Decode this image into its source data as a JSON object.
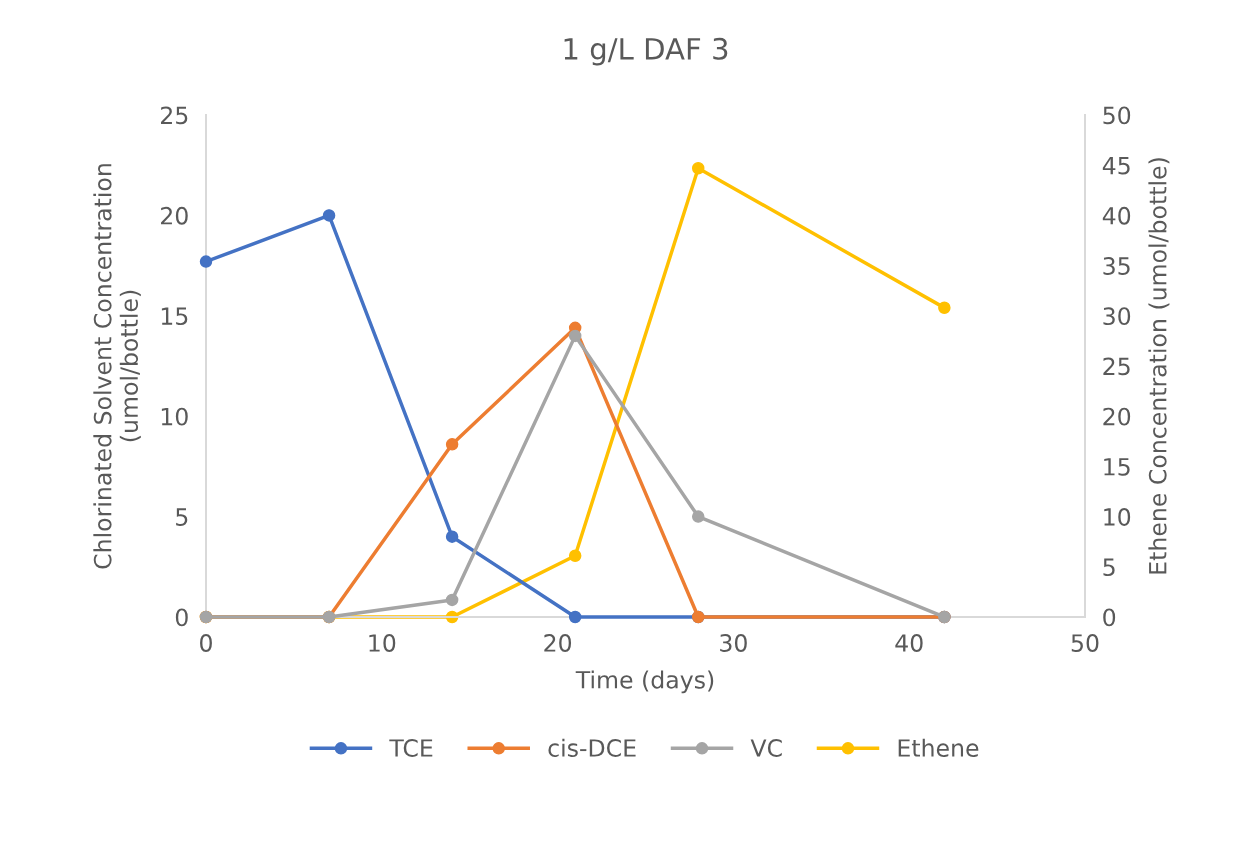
{
  "chart_data": {
    "type": "line",
    "title": "1 g/L DAF 3",
    "xlabel": "Time (days)",
    "ylabel": "Chlorinated Solvent Concentration\n(umol/bottle)",
    "y2label": "Ethene Concentration (umol/bottle)",
    "x": [
      0,
      7,
      14,
      21,
      28,
      42
    ],
    "series": [
      {
        "name": "TCE",
        "color": "#4472c4",
        "values": [
          17.7,
          20.0,
          4.0,
          0,
          0,
          0
        ]
      },
      {
        "name": "cis-DCE",
        "color": "#ed7d31",
        "values": [
          0,
          0,
          8.6,
          14.4,
          0,
          0
        ]
      },
      {
        "name": "VC",
        "color": "#a5a5a5",
        "values": [
          0,
          0,
          0.85,
          14.0,
          5.0,
          0
        ]
      },
      {
        "name": "Ethene",
        "color": "#ffc000",
        "axis": "y2",
        "values": [
          0,
          0,
          0,
          6.1,
          44.7,
          30.8
        ]
      }
    ],
    "xlim": [
      0,
      50
    ],
    "xticks": [
      0,
      10,
      20,
      30,
      40,
      50
    ],
    "ylim": [
      0,
      25
    ],
    "yticks": [
      0,
      5,
      10,
      15,
      20,
      25
    ],
    "y2lim": [
      0,
      50
    ],
    "y2ticks": [
      0,
      5,
      10,
      15,
      20,
      25,
      30,
      35,
      40,
      45,
      50
    ],
    "grid": false,
    "legend": "bottom",
    "marker": "circle",
    "line_style": "solid"
  }
}
